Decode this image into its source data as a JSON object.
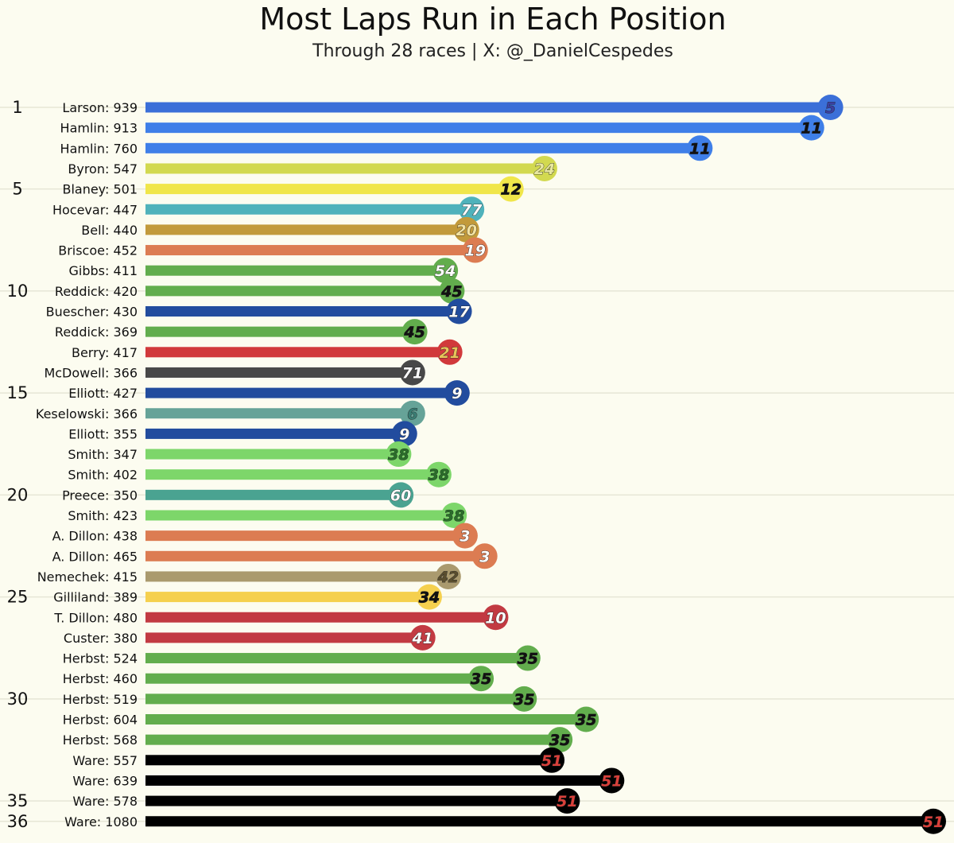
{
  "chart_data": {
    "type": "bar",
    "orientation": "horizontal",
    "title": "Most Laps Run in Each Position",
    "subtitle": "Through 28 races | X: @_DanielCespedes",
    "position_ticks": [
      "1",
      "5",
      "10",
      "15",
      "20",
      "25",
      "30",
      "35",
      "36"
    ],
    "categories": [
      "Larson: 939",
      "Hamlin: 913",
      "Hamlin: 760",
      "Byron: 547",
      "Blaney: 501",
      "Hocevar: 447",
      "Bell: 440",
      "Briscoe: 452",
      "Gibbs: 411",
      "Reddick: 420",
      "Buescher: 430",
      "Reddick: 369",
      "Berry: 417",
      "McDowell: 366",
      "Elliott: 427",
      "Keselowski: 366",
      "Elliott: 355",
      "Smith: 347",
      "Smith: 402",
      "Preece: 350",
      "Smith: 423",
      "A. Dillon: 438",
      "A. Dillon: 465",
      "Nemechek: 415",
      "Gilliland: 389",
      "T. Dillon: 480",
      "Custer: 380",
      "Herbst: 524",
      "Herbst: 460",
      "Herbst: 519",
      "Herbst: 604",
      "Herbst: 568",
      "Ware: 557",
      "Ware: 639",
      "Ware: 578",
      "Ware: 1080"
    ],
    "positions": [
      1,
      2,
      3,
      4,
      5,
      6,
      7,
      8,
      9,
      10,
      11,
      12,
      13,
      14,
      15,
      16,
      17,
      18,
      19,
      20,
      21,
      22,
      23,
      24,
      25,
      26,
      27,
      28,
      29,
      30,
      31,
      32,
      33,
      34,
      35,
      36
    ],
    "values": [
      939,
      913,
      760,
      547,
      501,
      447,
      440,
      452,
      411,
      420,
      430,
      369,
      417,
      366,
      427,
      366,
      355,
      347,
      402,
      350,
      423,
      438,
      465,
      415,
      389,
      480,
      380,
      524,
      460,
      519,
      604,
      568,
      557,
      639,
      578,
      1080
    ],
    "car_numbers": [
      "5",
      "11",
      "11",
      "24",
      "12",
      "77",
      "20",
      "19",
      "54",
      "45",
      "17",
      "45",
      "21",
      "71",
      "9",
      "6",
      "9",
      "38",
      "38",
      "60",
      "38",
      "3",
      "3",
      "42",
      "34",
      "10",
      "41",
      "35",
      "35",
      "35",
      "35",
      "35",
      "51",
      "51",
      "51",
      "51"
    ],
    "bar_colors": [
      "#3b6fd8",
      "#3f7fe8",
      "#3f7fe8",
      "#d2d950",
      "#f0e64a",
      "#4fb2bb",
      "#c29a3b",
      "#dc7c52",
      "#62ad4d",
      "#62ad4d",
      "#224c9e",
      "#62ad4d",
      "#d1393b",
      "#484848",
      "#224c9e",
      "#66a398",
      "#224c9e",
      "#7dd66a",
      "#7dd66a",
      "#4aa391",
      "#7dd66a",
      "#dc7c52",
      "#dc7c52",
      "#aa9a6e",
      "#f5d04e",
      "#c23a42",
      "#c23a42",
      "#62ad4d",
      "#62ad4d",
      "#62ad4d",
      "#62ad4d",
      "#62ad4d",
      "#000000",
      "#000000",
      "#000000",
      "#000000"
    ],
    "number_colors": [
      "#3b3fa0",
      "#111111",
      "#111111",
      "#e8e8a0",
      "#111111",
      "#ffffff",
      "#f3e2a0",
      "#ffffff",
      "#ffffff",
      "#111111",
      "#ffffff",
      "#111111",
      "#e8c45a",
      "#ffffff",
      "#ffffff",
      "#3a7d74",
      "#ffffff",
      "#2a6e2a",
      "#2a6e2a",
      "#ffffff",
      "#2a6e2a",
      "#ffffff",
      "#ffffff",
      "#5a4e2e",
      "#111111",
      "#ffffff",
      "#ffffff",
      "#111111",
      "#111111",
      "#111111",
      "#111111",
      "#111111",
      "#d9403a",
      "#d9403a",
      "#d9403a",
      "#d9403a"
    ],
    "xlim": [
      0,
      1080
    ],
    "grid": true,
    "legend": "none"
  }
}
